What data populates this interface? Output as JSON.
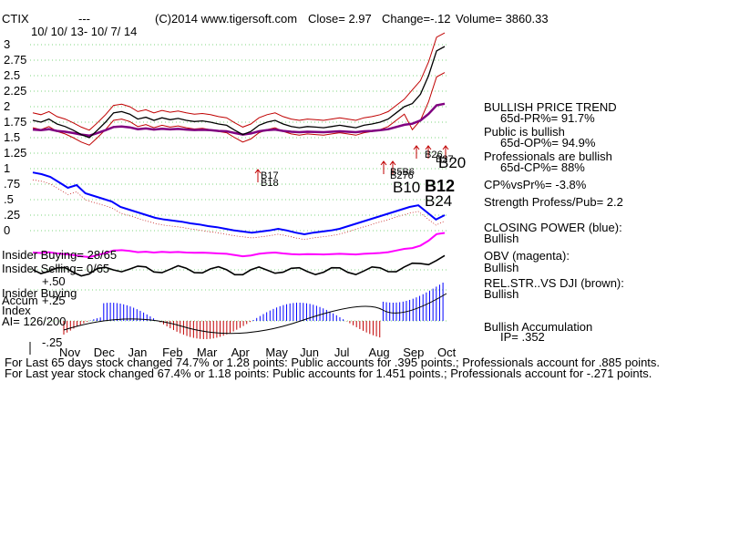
{
  "header": {
    "ticker": "CTIX",
    "dashes": "---",
    "copyright": "(C)2014 www.tigersoft.com",
    "close": "Close=  2.97",
    "change": "Change=-.12",
    "volume": "Volume= 3860.33",
    "date_range": "10/ 10/ 13- 10/ 7/ 14"
  },
  "left_labels": {
    "insider_buying_ratio": "Insider Buying= 28/65",
    "insider_selling_ratio": "Insider Selling= 0/65",
    "plus50": "+.50",
    "insider_buying": "Insider Buying",
    "accum": "Accum",
    "plus25": "+.25",
    "index": "Index",
    "ai": "AI= 126/200",
    "minus25": "-.25"
  },
  "signals": {
    "b17": "B17",
    "b18": "B18",
    "b10": "B10",
    "b12": "B12",
    "b24": "B24",
    "b20": "B20",
    "b26": "B26",
    "b27": "B27",
    "b56": "B5B6",
    "b276": "B276"
  },
  "right_panel": {
    "trend_title": "BULLISH PRICE TREND",
    "pr": "65d-PR%= 91.7%",
    "public_title": "Public is bullish",
    "op": "65d-OP%= 94.9%",
    "pro_title": "Professionals are bullish",
    "cp": "65d-CP%= 88%",
    "cpvspr": "CP%vsPr%= -3.8%",
    "strength": "Strength Profess/Pub= 2.2",
    "closing_power": "CLOSING POWER (blue):",
    "closing_power_val": "Bullish",
    "obv": "OBV (magenta):",
    "obv_val": "Bullish",
    "relstr": "REL.STR..VS DJI (brown):",
    "relstr_val": "Bullish",
    "accum": "Bullish Accumulation",
    "ip": "IP=  .352"
  },
  "footer": {
    "line1": "For Last 65 days stock changed  74.7% or  1.28 points:  Public accounts for  .395 points.;  Professionals account for  .885 points.",
    "line2": "For Last year stock changed  67.4% or  1.18 points:  Public accounts for  1.451 points.;  Professionals account for -.271 points."
  },
  "colors": {
    "price": "#000000",
    "band": "#c00000",
    "ma": "#800080",
    "closing_power": "#0000ff",
    "obv": "#ff00ff",
    "relstr": "#8b4513",
    "accum_pos": "#0000ff",
    "accum_neg": "#c00000",
    "grid": "#00aa00"
  },
  "chart_data": {
    "type": "line",
    "x": [
      "Nov",
      "Dec",
      "Jan",
      "Feb",
      "Mar",
      "Apr",
      "May",
      "Jun",
      "Jul",
      "Aug",
      "Sep",
      "Oct"
    ],
    "y_ticks": [
      "3",
      "2.75",
      "2.5",
      "2.25",
      "2",
      "1.75",
      "1.5",
      "1.25",
      "1",
      ".75",
      ".5",
      ".25",
      "0"
    ],
    "ylim": [
      0,
      3
    ],
    "grid": true,
    "series": [],
    "price_path": [
      1.78,
      1.75,
      1.8,
      1.72,
      1.68,
      1.62,
      1.55,
      1.5,
      1.62,
      1.75,
      1.9,
      1.92,
      1.88,
      1.8,
      1.83,
      1.78,
      1.82,
      1.79,
      1.81,
      1.78,
      1.76,
      1.77,
      1.75,
      1.72,
      1.7,
      1.62,
      1.55,
      1.6,
      1.7,
      1.75,
      1.78,
      1.72,
      1.68,
      1.66,
      1.68,
      1.67,
      1.66,
      1.68,
      1.7,
      1.68,
      1.66,
      1.7,
      1.72,
      1.75,
      1.8,
      1.9,
      2.0,
      2.05,
      2.2,
      2.5,
      2.9,
      2.97
    ],
    "closing_power_path": [
      0.98,
      0.95,
      0.9,
      0.8,
      0.7,
      0.75,
      0.6,
      0.55,
      0.5,
      0.45,
      0.35,
      0.3,
      0.25,
      0.2,
      0.15,
      0.12,
      0.1,
      0.08,
      0.05,
      0.03,
      0.0,
      -0.02,
      -0.05,
      -0.08,
      -0.1,
      -0.12,
      -0.1,
      -0.08,
      -0.05,
      -0.08,
      -0.12,
      -0.15,
      -0.12,
      -0.1,
      -0.08,
      -0.05,
      0.0,
      0.05,
      0.1,
      0.15,
      0.2,
      0.25,
      0.3,
      0.35,
      0.38,
      0.25,
      0.12,
      0.2
    ]
  }
}
